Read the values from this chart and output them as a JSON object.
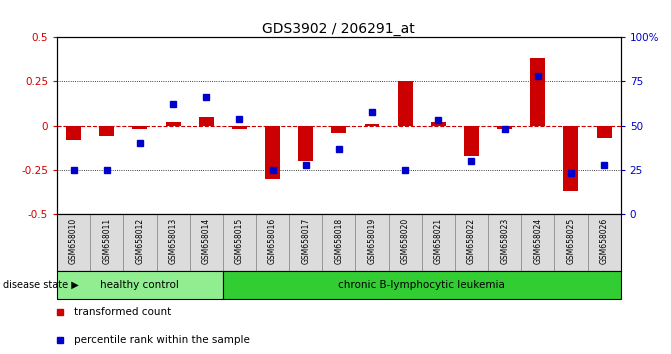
{
  "title": "GDS3902 / 206291_at",
  "samples": [
    "GSM658010",
    "GSM658011",
    "GSM658012",
    "GSM658013",
    "GSM658014",
    "GSM658015",
    "GSM658016",
    "GSM658017",
    "GSM658018",
    "GSM658019",
    "GSM658020",
    "GSM658021",
    "GSM658022",
    "GSM658023",
    "GSM658024",
    "GSM658025",
    "GSM658026"
  ],
  "red_values": [
    -0.08,
    -0.06,
    -0.02,
    0.02,
    0.05,
    -0.02,
    -0.3,
    -0.2,
    -0.04,
    0.01,
    0.25,
    0.02,
    -0.17,
    -0.02,
    0.38,
    -0.37,
    -0.07
  ],
  "blue_values_pct": [
    25,
    25,
    40,
    62,
    66,
    54,
    25,
    28,
    37,
    58,
    25,
    53,
    30,
    48,
    78,
    23,
    28
  ],
  "healthy_control_count": 5,
  "chronic_leukemia_count": 12,
  "healthy_color": "#90EE90",
  "leukemia_color": "#32CD32",
  "red_bar_color": "#CC0000",
  "blue_bar_color": "#0000CC",
  "zero_line_color": "#CC0000",
  "ylim": [
    -0.5,
    0.5
  ],
  "y2lim": [
    0,
    100
  ],
  "yticks_left": [
    -0.5,
    -0.25,
    0.0,
    0.25,
    0.5
  ],
  "ytick_labels_left": [
    "-0.5",
    "-0.25",
    "0",
    "0.25",
    "0.5"
  ],
  "y2ticks": [
    0,
    25,
    50,
    75,
    100
  ],
  "y2tick_labels": [
    "0",
    "25",
    "50",
    "75",
    "100%"
  ],
  "bar_width": 0.45,
  "background_color": "#ffffff"
}
